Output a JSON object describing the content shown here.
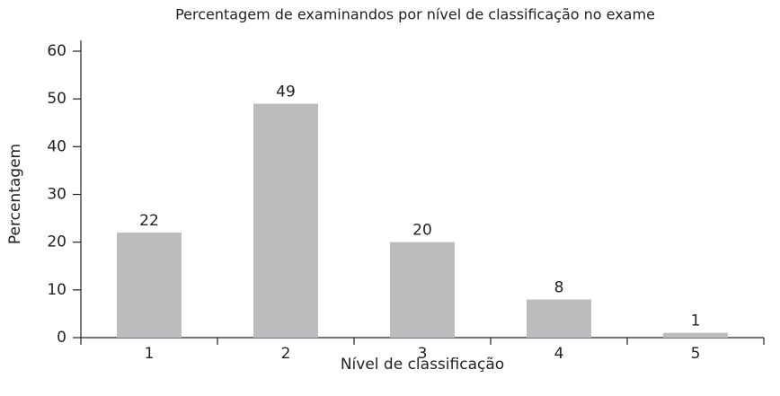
{
  "chart_data": {
    "type": "bar",
    "title": "Percentagem de examinandos por nível de classificação no exame",
    "x_label": "Nível de classificação",
    "y_label": "Percentagem",
    "categories": [
      "1",
      "2",
      "3",
      "4",
      "5"
    ],
    "values": [
      22,
      49,
      20,
      8,
      1
    ],
    "color": "#bcbcbe",
    "ylim": [
      0,
      60
    ],
    "yticks": [
      0,
      10,
      20,
      30,
      40,
      50,
      60
    ],
    "grid": false
  }
}
